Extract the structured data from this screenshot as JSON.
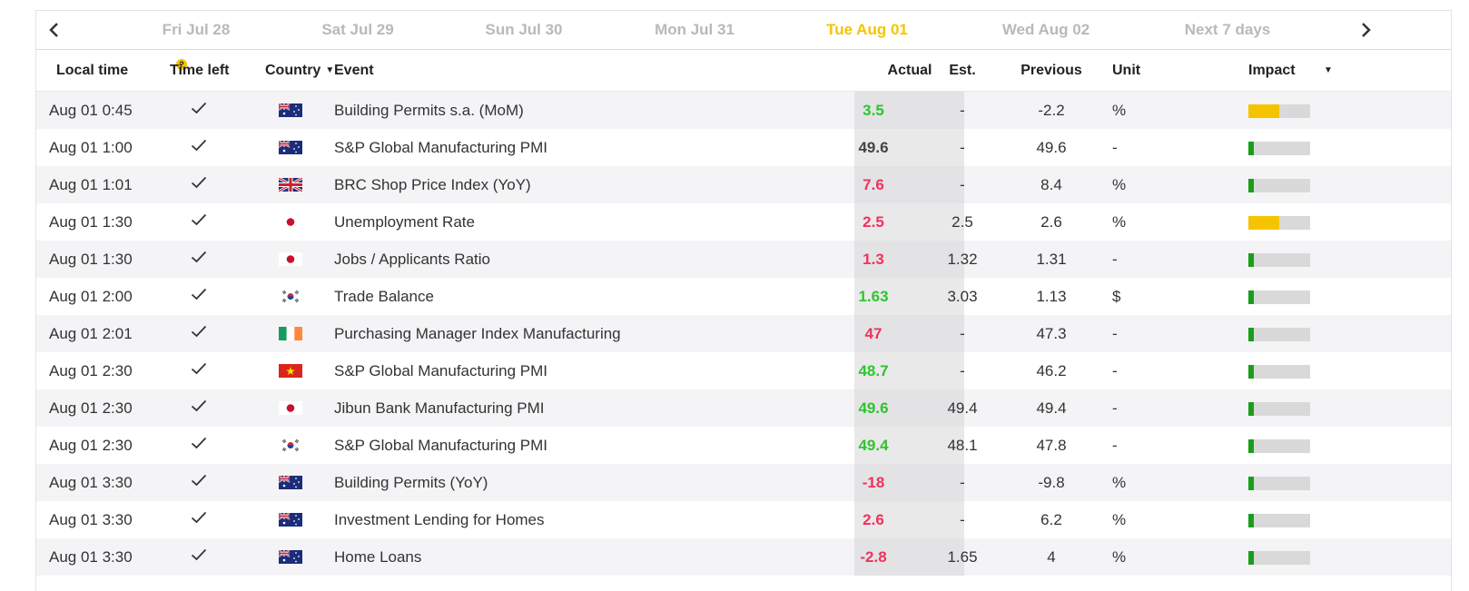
{
  "nav": {
    "prev_label": "",
    "next_label": "",
    "tabs": [
      {
        "label": "Fri Jul 28",
        "active": false
      },
      {
        "label": "Sat Jul 29",
        "active": false
      },
      {
        "label": "Sun Jul 30",
        "active": false
      },
      {
        "label": "Mon Jul 31",
        "active": false
      },
      {
        "label": "Tue Aug 01",
        "active": true
      },
      {
        "label": "Wed Aug 02",
        "active": false
      },
      {
        "label": "Next 7 days",
        "active": false
      }
    ]
  },
  "header": {
    "local_time": "Local time",
    "help_mark": "?",
    "time_left": "Time left",
    "country": "Country",
    "country_caret": "▼",
    "event": "Event",
    "actual": "Actual",
    "est": "Est.",
    "previous": "Previous",
    "unit": "Unit",
    "impact": "Impact",
    "impact_caret": "▼"
  },
  "colors": {
    "positive": "#2ec42e",
    "negative": "#f0325a",
    "neutral": "#444444",
    "impact_low": "#1a9e1a",
    "impact_medium": "#f5c400",
    "impact_track": "#d9d9d9",
    "active_tab": "#f5c400"
  },
  "rows": [
    {
      "time": "Aug 01 0:45",
      "status": "check-icon",
      "flag": "australia-flag-icon",
      "event": "Building Permits s.a. (MoM)",
      "actual": "3.5",
      "actual_tone": "positive",
      "est": "-",
      "previous": "-2.2",
      "unit": "%",
      "impact": "medium"
    },
    {
      "time": "Aug 01 1:00",
      "status": "check-icon",
      "flag": "australia-flag-icon",
      "event": "S&P Global Manufacturing PMI",
      "actual": "49.6",
      "actual_tone": "neutral",
      "est": "-",
      "previous": "49.6",
      "unit": "-",
      "impact": "low"
    },
    {
      "time": "Aug 01 1:01",
      "status": "check-icon",
      "flag": "uk-flag-icon",
      "event": "BRC Shop Price Index (YoY)",
      "actual": "7.6",
      "actual_tone": "negative",
      "est": "-",
      "previous": "8.4",
      "unit": "%",
      "impact": "low"
    },
    {
      "time": "Aug 01 1:30",
      "status": "check-icon",
      "flag": "japan-flag-icon",
      "event": "Unemployment Rate",
      "actual": "2.5",
      "actual_tone": "negative",
      "est": "2.5",
      "previous": "2.6",
      "unit": "%",
      "impact": "medium"
    },
    {
      "time": "Aug 01 1:30",
      "status": "check-icon",
      "flag": "japan-flag-icon",
      "event": "Jobs / Applicants Ratio",
      "actual": "1.3",
      "actual_tone": "negative",
      "est": "1.32",
      "previous": "1.31",
      "unit": "-",
      "impact": "low"
    },
    {
      "time": "Aug 01 2:00",
      "status": "check-icon",
      "flag": "south-korea-flag-icon",
      "event": "Trade Balance",
      "actual": "1.63",
      "actual_tone": "positive",
      "est": "3.03",
      "previous": "1.13",
      "unit": "$",
      "impact": "low"
    },
    {
      "time": "Aug 01 2:01",
      "status": "check-icon",
      "flag": "ireland-flag-icon",
      "event": "Purchasing Manager Index Manufacturing",
      "actual": "47",
      "actual_tone": "negative",
      "est": "-",
      "previous": "47.3",
      "unit": "-",
      "impact": "low"
    },
    {
      "time": "Aug 01 2:30",
      "status": "check-icon",
      "flag": "vietnam-flag-icon",
      "event": "S&P Global Manufacturing PMI",
      "actual": "48.7",
      "actual_tone": "positive",
      "est": "-",
      "previous": "46.2",
      "unit": "-",
      "impact": "low"
    },
    {
      "time": "Aug 01 2:30",
      "status": "check-icon",
      "flag": "japan-flag-icon",
      "event": "Jibun Bank Manufacturing PMI",
      "actual": "49.6",
      "actual_tone": "positive",
      "est": "49.4",
      "previous": "49.4",
      "unit": "-",
      "impact": "low"
    },
    {
      "time": "Aug 01 2:30",
      "status": "check-icon",
      "flag": "south-korea-flag-icon",
      "event": "S&P Global Manufacturing PMI",
      "actual": "49.4",
      "actual_tone": "positive",
      "est": "48.1",
      "previous": "47.8",
      "unit": "-",
      "impact": "low"
    },
    {
      "time": "Aug 01 3:30",
      "status": "check-icon",
      "flag": "australia-flag-icon",
      "event": "Building Permits (YoY)",
      "actual": "-18",
      "actual_tone": "negative",
      "est": "-",
      "previous": "-9.8",
      "unit": "%",
      "impact": "low"
    },
    {
      "time": "Aug 01 3:30",
      "status": "check-icon",
      "flag": "australia-flag-icon",
      "event": "Investment Lending for Homes",
      "actual": "2.6",
      "actual_tone": "negative",
      "est": "-",
      "previous": "6.2",
      "unit": "%",
      "impact": "low"
    },
    {
      "time": "Aug 01 3:30",
      "status": "check-icon",
      "flag": "australia-flag-icon",
      "event": "Home Loans",
      "actual": "-2.8",
      "actual_tone": "negative",
      "est": "1.65",
      "previous": "4",
      "unit": "%",
      "impact": "low"
    }
  ]
}
